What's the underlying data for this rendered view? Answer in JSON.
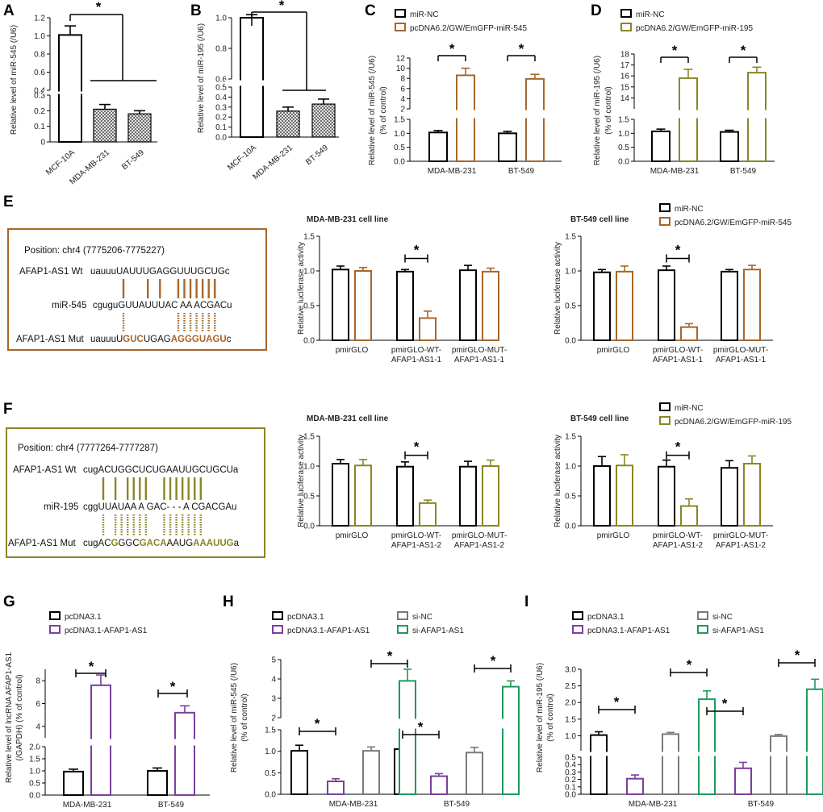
{
  "colors": {
    "brown": "#A8662A",
    "olive": "#8A8626",
    "purple": "#7B3F9E",
    "gray": "#7A7A7A",
    "green": "#1E9A5C",
    "black": "#000000",
    "hatch": "#555555"
  },
  "chart_data": [
    {
      "id": "A",
      "type": "bar",
      "letter": "A",
      "ylabel": "Relative level of miR-545 (/U6)",
      "categories": [
        "MCF-10A",
        "MDA-MB-231",
        "BT-549"
      ],
      "series": [
        {
          "name": "level",
          "values": [
            1.01,
            0.21,
            0.18
          ],
          "errors": [
            0.1,
            0.03,
            0.02
          ]
        }
      ],
      "y_segments": [
        {
          "range": [
            0,
            0.3
          ],
          "ticks": [
            "0",
            "0.1",
            "0.2",
            "0.3"
          ]
        },
        {
          "range": [
            0.4,
            1.2
          ],
          "ticks": [
            "0.4",
            "0.6",
            "0.8",
            "1.0",
            "1.2"
          ]
        }
      ],
      "annotations": [
        "*"
      ]
    },
    {
      "id": "B",
      "type": "bar",
      "letter": "B",
      "ylabel": "Relative level of miR-195 (/U6)",
      "categories": [
        "MCF-10A",
        "MDA-MB-231",
        "BT-549"
      ],
      "series": [
        {
          "name": "level",
          "values": [
            1.0,
            0.26,
            0.33
          ],
          "errors": [
            0.02,
            0.04,
            0.05
          ]
        }
      ],
      "y_segments": [
        {
          "range": [
            0,
            0.5
          ],
          "ticks": [
            "0.0",
            "0.1",
            "0.2",
            "0.3",
            "0.4",
            "0.5"
          ]
        },
        {
          "range": [
            0.6,
            1.0
          ],
          "ticks": [
            "0.6",
            "0.8",
            "1.0"
          ]
        }
      ],
      "annotations": [
        "*"
      ]
    },
    {
      "id": "C",
      "type": "bar",
      "letter": "C",
      "ylabel": "Relative level of miR-545 (/U6) (% of control)",
      "categories": [
        "MDA-MB-231",
        "BT-549"
      ],
      "legend": [
        "miR-NC",
        "pcDNA6.2/GW/EmGFP-miR-545"
      ],
      "series": [
        {
          "name": "miR-NC",
          "values": [
            1.03,
            1.0
          ],
          "errors": [
            0.07,
            0.07
          ]
        },
        {
          "name": "pcDNA6.2/GW/EmGFP-miR-545",
          "values": [
            8.6,
            7.9
          ],
          "errors": [
            1.4,
            0.9
          ]
        }
      ],
      "y_segments": [
        {
          "range": [
            0,
            1.5
          ],
          "ticks": [
            "0.0",
            "0.5",
            "1.0",
            "1.5"
          ]
        },
        {
          "range": [
            2,
            12
          ],
          "ticks": [
            "2",
            "4",
            "6",
            "8",
            "10",
            "12"
          ]
        }
      ],
      "annotations": [
        "*",
        "*"
      ]
    },
    {
      "id": "D",
      "type": "bar",
      "letter": "D",
      "ylabel": "Relative level of miR-195 (/U6) (% of control)",
      "categories": [
        "MDA-MB-231",
        "BT-549"
      ],
      "legend": [
        "miR-NC",
        "pcDNA6.2/GW/EmGFP-miR-195"
      ],
      "series": [
        {
          "name": "miR-NC",
          "values": [
            1.07,
            1.05
          ],
          "errors": [
            0.08,
            0.06
          ]
        },
        {
          "name": "pcDNA6.2/GW/EmGFP-miR-195",
          "values": [
            15.8,
            16.3
          ],
          "errors": [
            0.8,
            0.5
          ]
        }
      ],
      "y_segments": [
        {
          "range": [
            0,
            1.5
          ],
          "ticks": [
            "0.0",
            "0.5",
            "1.0",
            "1.5"
          ]
        },
        {
          "range": [
            13,
            18
          ],
          "ticks": [
            "14",
            "15",
            "16",
            "17",
            "18"
          ]
        }
      ],
      "annotations": [
        "*",
        "*"
      ]
    },
    {
      "id": "E1",
      "type": "bar",
      "title": "MDA-MB-231 cell line",
      "ylabel": "Relative luciferase activity",
      "categories": [
        "pmirGLO",
        "pmirGLO-WT-\nAFAP1-AS1-1",
        "pmirGLO-MUT-\nAFAP1-AS1-1"
      ],
      "series": [
        {
          "name": "miR-NC",
          "values": [
            1.02,
            0.99,
            1.01
          ],
          "errors": [
            0.05,
            0.03,
            0.07
          ]
        },
        {
          "name": "pcDNA6.2/GW/EmGFP-miR-545",
          "values": [
            1.0,
            0.32,
            0.99
          ],
          "errors": [
            0.05,
            0.1,
            0.05
          ]
        }
      ],
      "ylim": [
        0,
        1.5
      ],
      "ticks": [
        "0.0",
        "0.5",
        "1.0",
        "1.5"
      ],
      "annotations": [
        "*"
      ]
    },
    {
      "id": "E2",
      "type": "bar",
      "title": "BT-549 cell line",
      "ylabel": "Relative luciferase activity",
      "categories": [
        "pmirGLO",
        "pmirGLO-WT-\nAFAP1-AS1-1",
        "pmirGLO-MUT-\nAFAP1-AS1-1"
      ],
      "legend": [
        "miR-NC",
        "pcDNA6.2/GW/EmGFP-miR-545"
      ],
      "series": [
        {
          "name": "miR-NC",
          "values": [
            0.98,
            1.01,
            0.99
          ],
          "errors": [
            0.04,
            0.06,
            0.03
          ]
        },
        {
          "name": "pcDNA6.2/GW/EmGFP-miR-545",
          "values": [
            0.99,
            0.19,
            1.02
          ],
          "errors": [
            0.08,
            0.05,
            0.06
          ]
        }
      ],
      "ylim": [
        0,
        1.5
      ],
      "ticks": [
        "0.0",
        "0.5",
        "1.0",
        "1.5"
      ],
      "annotations": [
        "*"
      ]
    },
    {
      "id": "F1",
      "type": "bar",
      "title": "MDA-MB-231 cell line",
      "ylabel": "Relative luciferase activity",
      "categories": [
        "pmirGLO",
        "pmirGLO-WT-\nAFAP1-AS1-2",
        "pmirGLO-MUT-\nAFAP1-AS1-2"
      ],
      "series": [
        {
          "name": "miR-NC",
          "values": [
            1.04,
            0.99,
            0.99
          ],
          "errors": [
            0.07,
            0.08,
            0.09
          ]
        },
        {
          "name": "pcDNA6.2/GW/EmGFP-miR-195",
          "values": [
            1.01,
            0.38,
            1.0
          ],
          "errors": [
            0.1,
            0.05,
            0.1
          ]
        }
      ],
      "ylim": [
        0,
        1.5
      ],
      "ticks": [
        "0.0",
        "0.5",
        "1.0",
        "1.5"
      ],
      "annotations": [
        "*"
      ]
    },
    {
      "id": "F2",
      "type": "bar",
      "title": "BT-549 cell line",
      "ylabel": "Relative luciferase activity",
      "categories": [
        "pmirGLO",
        "pmirGLO-WT-\nAFAP1-AS1-2",
        "pmirGLO-MUT-\nAFAP1-AS1-2"
      ],
      "legend": [
        "miR-NC",
        "pcDNA6.2/GW/EmGFP-miR-195"
      ],
      "series": [
        {
          "name": "miR-NC",
          "values": [
            1.0,
            0.99,
            0.97
          ],
          "errors": [
            0.16,
            0.11,
            0.12
          ]
        },
        {
          "name": "pcDNA6.2/GW/EmGFP-miR-195",
          "values": [
            1.01,
            0.33,
            1.04
          ],
          "errors": [
            0.18,
            0.12,
            0.13
          ]
        }
      ],
      "ylim": [
        0,
        1.5
      ],
      "ticks": [
        "0.0",
        "0.5",
        "1.0",
        "1.5"
      ],
      "annotations": [
        "*"
      ]
    },
    {
      "id": "G",
      "type": "bar",
      "letter": "G",
      "ylabel": "Relative level of lncRNA AFAP1-AS1 (/GAPDH) (% of control)",
      "categories": [
        "MDA-MB-231",
        "BT-549"
      ],
      "legend": [
        "pcDNA3.1",
        "pcDNA3.1-AFAP1-AS1"
      ],
      "series": [
        {
          "name": "pcDNA3.1",
          "values": [
            0.97,
            1.0
          ],
          "errors": [
            0.1,
            0.12
          ]
        },
        {
          "name": "pcDNA3.1-AFAP1-AS1",
          "values": [
            7.6,
            5.2
          ],
          "errors": [
            0.9,
            0.6
          ]
        }
      ],
      "y_segments": [
        {
          "range": [
            0,
            2.0
          ],
          "ticks": [
            "0.0",
            "0.5",
            "1.0",
            "1.5",
            "2.0"
          ]
        },
        {
          "range": [
            3,
            9
          ],
          "ticks": [
            "4",
            "6",
            "8"
          ]
        }
      ],
      "annotations": [
        "*",
        "*"
      ]
    },
    {
      "id": "H",
      "type": "bar",
      "letter": "H",
      "ylabel": "Relative level of miR-545 (/U6) (% of control)",
      "categories": [
        "MDA-MB-231",
        "BT-549"
      ],
      "legend": [
        "pcDNA3.1",
        "si-NC",
        "pcDNA3.1-AFAP1-AS1",
        "si-AFAP1-AS1"
      ],
      "series": [
        {
          "name": "pcDNA3.1",
          "values": [
            1.01,
            1.05
          ],
          "errors": [
            0.13,
            0.13
          ]
        },
        {
          "name": "pcDNA3.1-AFAP1-AS1",
          "values": [
            0.3,
            0.42
          ],
          "errors": [
            0.06,
            0.06
          ]
        },
        {
          "name": "si-NC",
          "values": [
            1.01,
            0.97
          ],
          "errors": [
            0.09,
            0.12
          ]
        },
        {
          "name": "si-AFAP1-AS1",
          "values": [
            3.9,
            3.6
          ],
          "errors": [
            0.6,
            0.3
          ]
        }
      ],
      "y_segments": [
        {
          "range": [
            0,
            1.5
          ],
          "ticks": [
            "0.0",
            "0.5",
            "1.0",
            "1.5"
          ]
        },
        {
          "range": [
            2,
            5
          ],
          "ticks": [
            "2",
            "3",
            "4",
            "5"
          ]
        }
      ],
      "annotations": [
        "*",
        "*",
        "*",
        "*"
      ]
    },
    {
      "id": "I",
      "type": "bar",
      "letter": "I",
      "ylabel": "Relative level of miR-195 (/U6) (% of control)",
      "categories": [
        "MDA-MB-231",
        "BT-549"
      ],
      "legend": [
        "pcDNA3.1",
        "si-NC",
        "pcDNA3.1-AFAP1-AS1",
        "si-AFAP1-AS1"
      ],
      "series": [
        {
          "name": "pcDNA3.1",
          "values": [
            1.02,
            1.03
          ],
          "errors": [
            0.1,
            0.12
          ]
        },
        {
          "name": "pcDNA3.1-AFAP1-AS1",
          "values": [
            0.21,
            0.35
          ],
          "errors": [
            0.05,
            0.08
          ]
        },
        {
          "name": "si-NC",
          "values": [
            1.05,
            0.99
          ],
          "errors": [
            0.05,
            0.05
          ]
        },
        {
          "name": "si-AFAP1-AS1",
          "values": [
            2.1,
            2.4
          ],
          "errors": [
            0.25,
            0.3
          ]
        }
      ],
      "y_segments": [
        {
          "range": [
            0,
            0.5
          ],
          "ticks": [
            "0.0",
            "0.1",
            "0.2",
            "0.3",
            "0.4",
            "0.5"
          ]
        },
        {
          "range": [
            0.55,
            3.0
          ],
          "ticks": [
            "1.0",
            "1.5",
            "2.0",
            "2.5",
            "3.0"
          ]
        }
      ],
      "annotations": [
        "*",
        "*",
        "*",
        "*"
      ]
    }
  ],
  "panel_letters": [
    "A",
    "B",
    "C",
    "D",
    "E",
    "F",
    "G",
    "H",
    "I"
  ],
  "sequence_boxes": [
    {
      "position": "Position: chr4 (7775206-7775227)",
      "wt_label": "AFAP1-AS1 Wt",
      "wt_seq": "uauuuUAUUUGAGGUUUGCUGc",
      "mir_label": "miR-545",
      "mir_seq": "cguguGUUAUUUAC AA ACGACu",
      "mut_label": "AFAP1-AS1 Mut",
      "mut_pre": "uauuuU",
      "mut_m1": "GUC",
      "mut_mid": "UGAG",
      "mut_m2": "AGGGUAGU",
      "mut_post": "c"
    },
    {
      "position": "Position: chr4 (7777264-7777287)",
      "wt_label": "AFAP1-AS1 Wt",
      "wt_seq": "cugACUGGCUCUGAAUUGCUGCUa",
      "mir_label": "miR-195",
      "mir_seq": "cggUUAUAA A GAC- - -  A CGACGAu",
      "mut_label": "AFAP1-AS1 Mut",
      "mut_pre": "cugAC",
      "mut_m1": "G",
      "mut_mid": "GGC",
      "mut_m2": "GACA",
      "mut_mid2": "AAUG",
      "mut_m3": "AAAUUG",
      "mut_post": "a"
    }
  ]
}
